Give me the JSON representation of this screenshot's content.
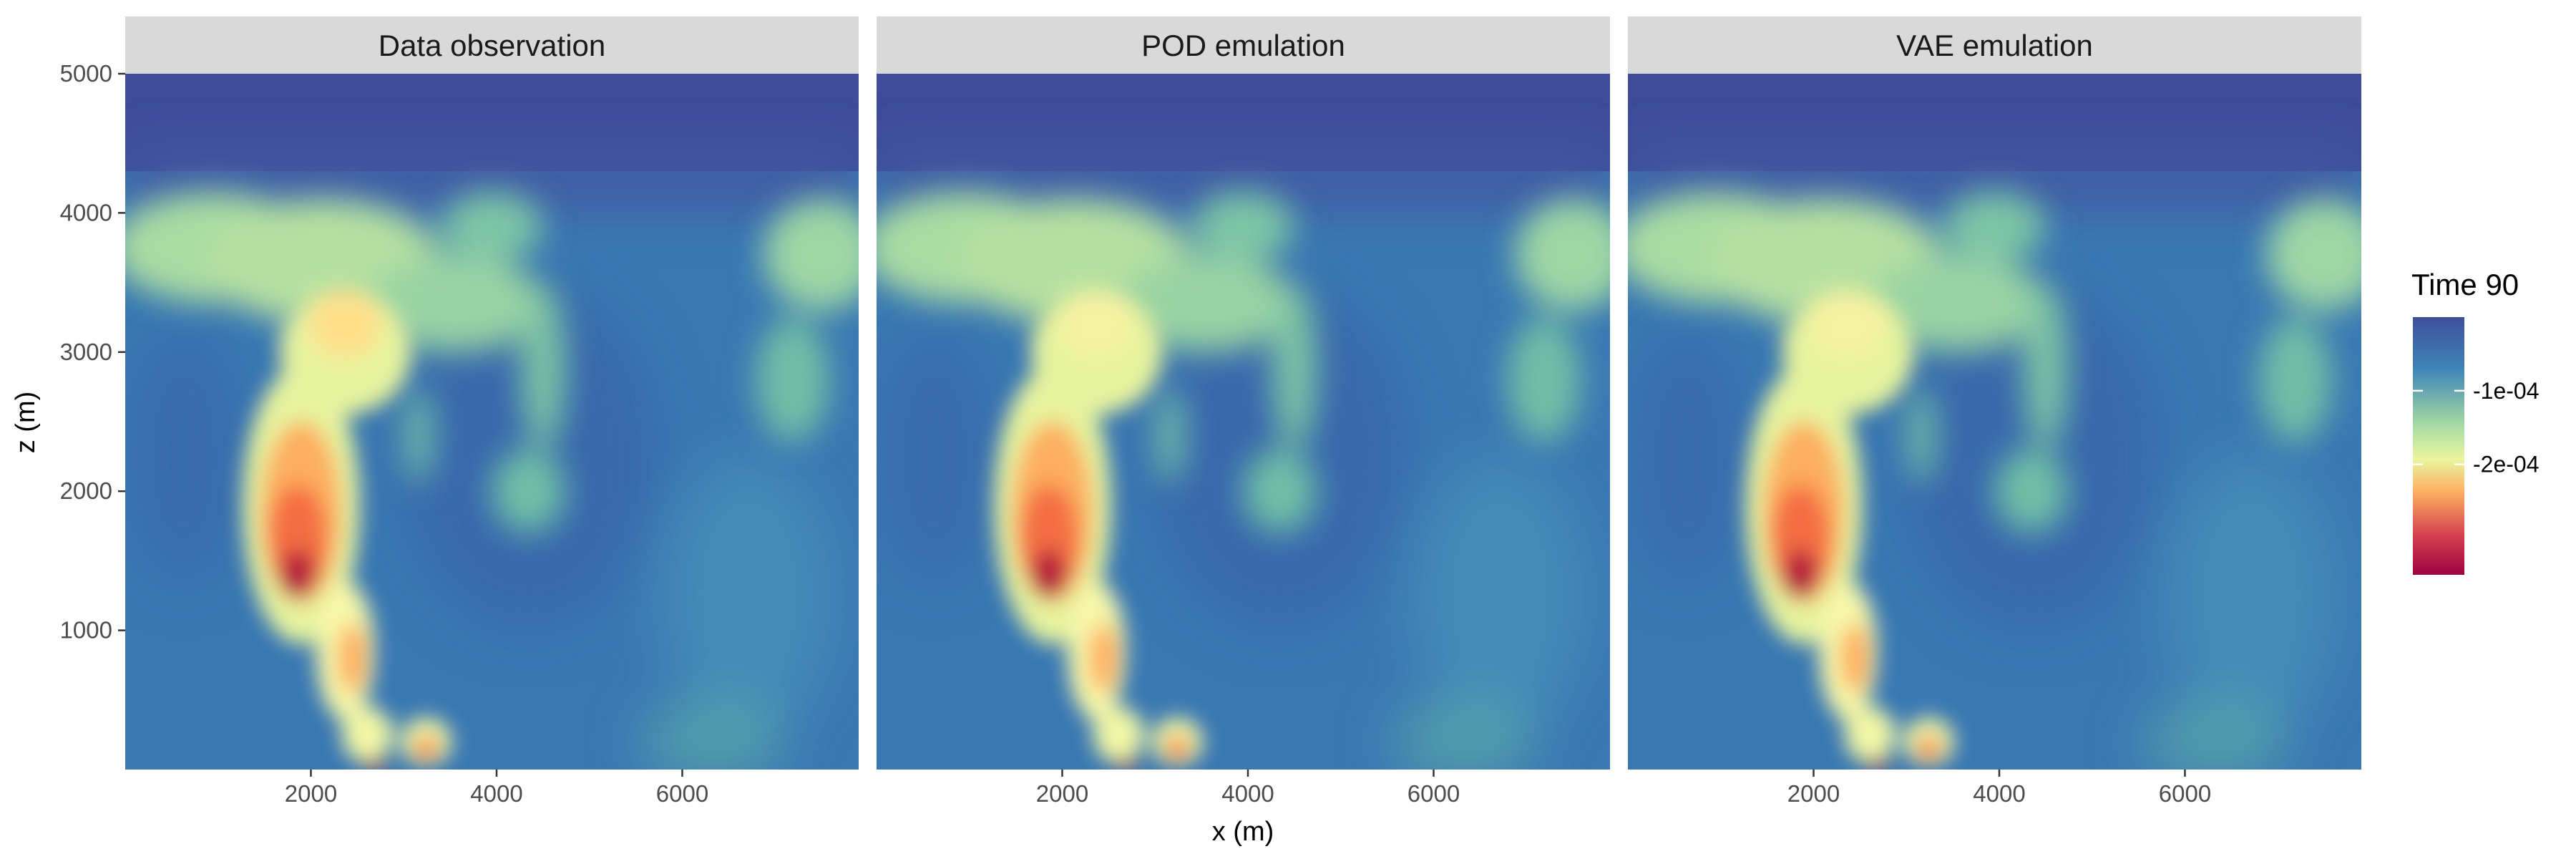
{
  "chart_data": {
    "type": "heatmap",
    "panels": [
      {
        "title": "Data observation"
      },
      {
        "title": "POD emulation"
      },
      {
        "title": "VAE emulation"
      }
    ],
    "xlabel": "x (m)",
    "ylabel": "z (m)",
    "xlim": [
      0,
      7900
    ],
    "ylim": [
      0,
      5000
    ],
    "x_ticks": [
      2000,
      4000,
      6000
    ],
    "x_tick_labels": [
      "2000",
      "4000",
      "6000"
    ],
    "y_ticks": [
      1000,
      2000,
      3000,
      4000,
      5000
    ],
    "y_tick_labels": [
      "1000",
      "2000",
      "3000",
      "4000",
      "5000"
    ],
    "legend": {
      "title": "Time 90",
      "placement": "right",
      "ticks": [
        -0.0001,
        -0.0002
      ],
      "tick_labels": [
        "-1e-04",
        "-2e-04"
      ],
      "range": [
        -0.00035,
        0
      ],
      "colors": [
        "#3f4e9c",
        "#3d85b8",
        "#5fb9a6",
        "#a6dba4",
        "#eaf59e",
        "#fee08b",
        "#fdae61",
        "#f46d43",
        "#d53e4f",
        "#9e0142"
      ]
    },
    "grid": false
  }
}
